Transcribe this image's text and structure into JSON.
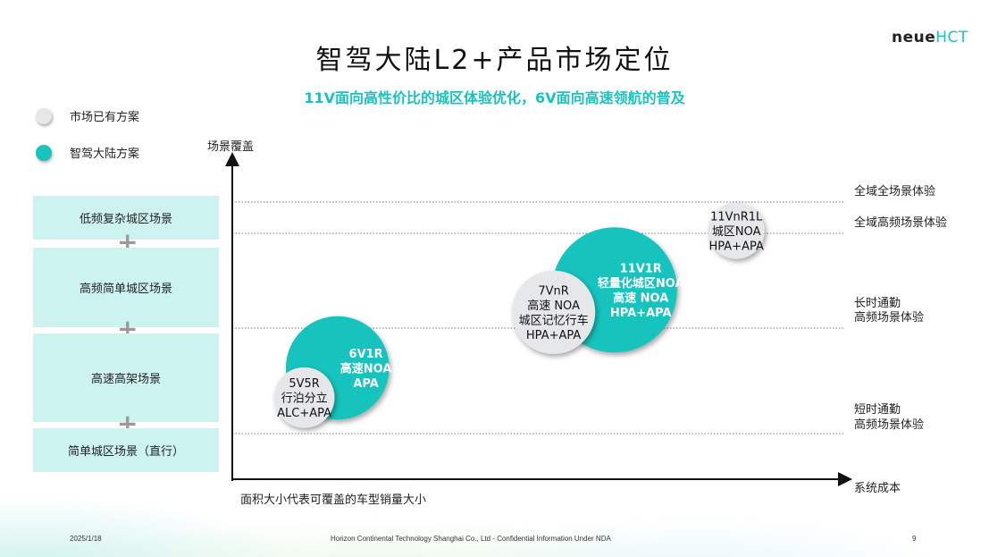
{
  "header": {
    "title": "智驾大陆L2+产品市场定位",
    "subtitle": "11V面向高性价比的城区体验优化，6V面向高速领航的普及",
    "logo_main": "neue",
    "logo_accent": "HCT"
  },
  "legend": {
    "existing": {
      "label": "市场已有方案",
      "color": "#e6e7e9"
    },
    "ours": {
      "label": "智驾大陆方案",
      "color": "#19c3bd"
    }
  },
  "scenarios": [
    "低频复杂城区场景",
    "高频简单城区场景",
    "高速高架场景",
    "简单城区场景（直行）"
  ],
  "plus_symbol": "+",
  "footer": {
    "date": "2025/1/18",
    "company": "Horizon Continental Technology Shanghai Co., Ltd -  Confidential Information Under NDA",
    "page": "9"
  },
  "chart_data": {
    "type": "bubble",
    "title": "",
    "xlabel": "系统成本",
    "ylabel": "场景覆盖",
    "note": "面积大小代表可覆盖的车型销量大小",
    "y_levels": [
      "短时通勤\n高频场景体验",
      "长时通勤\n高频场景体验",
      "全域高频场景体验",
      "全域全场景体验"
    ],
    "bubbles": [
      {
        "label": [
          "11V1R",
          "轻量化城区NOA",
          "高速 NOA",
          "HPA+APA"
        ],
        "group": "ours",
        "x": 6.9,
        "y": 2.55,
        "size": 10.0
      },
      {
        "label": [
          "7VnR",
          "高速 NOA",
          "城区记忆行车",
          "HPA+APA"
        ],
        "group": "existing",
        "x": 5.8,
        "y": 2.25,
        "size": 4.4
      },
      {
        "label": [
          "6V1R",
          "高速NOA",
          "APA"
        ],
        "group": "ours",
        "x": 1.9,
        "y": 1.5,
        "size": 6.8
      },
      {
        "label": [
          "5V5R",
          "行泊分立",
          "ALC+APA"
        ],
        "group": "existing",
        "x": 1.3,
        "y": 1.1,
        "size": 2.3
      },
      {
        "label": [
          "11VnR1L",
          "城区NOA",
          "HPA+APA"
        ],
        "group": "existing",
        "x": 9.1,
        "y": 3.35,
        "size": 2.0
      }
    ]
  }
}
